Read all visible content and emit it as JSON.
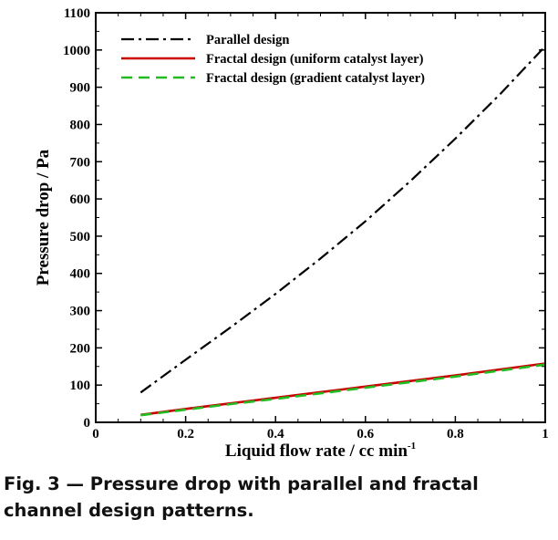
{
  "chart_data": {
    "type": "line",
    "xlabel": "Liquid flow rate / cc min",
    "xlabel_sup": "-1",
    "ylabel": "Pressure drop / Pa",
    "xlim": [
      0,
      1
    ],
    "ylim": [
      0,
      1100
    ],
    "xticks": [
      "0",
      "0.2",
      "0.4",
      "0.6",
      "0.8",
      "1"
    ],
    "yticks": [
      "0",
      "100",
      "200",
      "300",
      "400",
      "500",
      "600",
      "700",
      "800",
      "900",
      "1000",
      "1100"
    ],
    "grid": false,
    "legend_position": "top-left",
    "x": [
      0.1,
      0.2,
      0.3,
      0.4,
      0.5,
      0.6,
      0.7,
      0.8,
      0.9,
      1.0
    ],
    "series": [
      {
        "name": "Parallel design",
        "style": "dash-dot",
        "color": "#000000",
        "values": [
          80,
          168,
          255,
          345,
          440,
          540,
          648,
          762,
          882,
          1010
        ]
      },
      {
        "name": "Fractal design (uniform catalyst layer)",
        "style": "solid",
        "color": "#cc0000",
        "values": [
          20,
          36,
          51,
          66,
          81,
          96,
          111,
          126,
          142,
          158
        ]
      },
      {
        "name": "Fractal design (gradient catalyst layer)",
        "style": "dashed",
        "color": "#22bb22",
        "values": [
          19,
          34,
          49,
          63,
          78,
          93,
          108,
          123,
          139,
          155
        ]
      }
    ]
  },
  "caption": "Fig. 3 — Pressure drop with parallel and fractal channel design patterns."
}
